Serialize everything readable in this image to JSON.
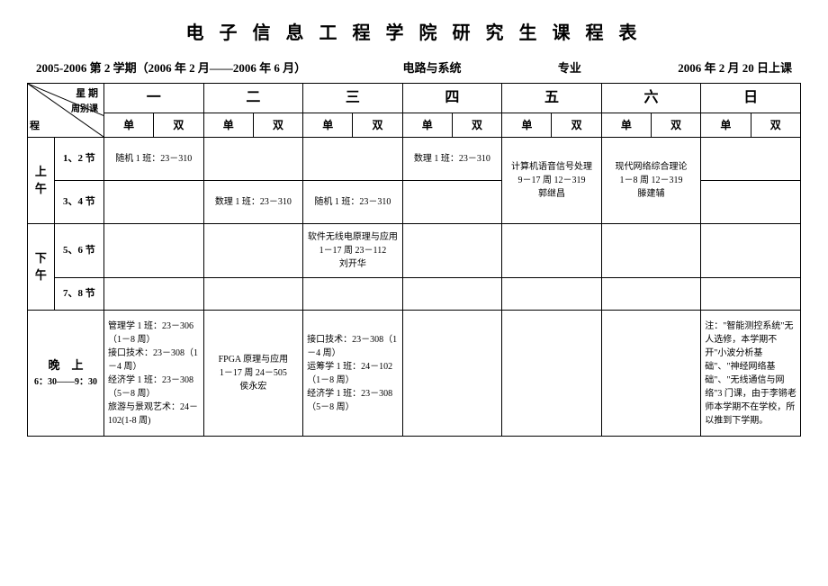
{
  "title": "电 子 信 息 工 程 学 院 研 究 生 课 程 表",
  "subtitle": {
    "term": "2005-2006 第 2 学期（2006 年 2 月——2006 年 6 月）",
    "major": "电路与系统",
    "major_label": "专业",
    "start": "2006 年 2 月 20 日上课"
  },
  "header": {
    "diag_top": "星 期",
    "diag_mid": "周别课",
    "diag_bot": "程",
    "days": [
      "一",
      "二",
      "三",
      "四",
      "五",
      "六",
      "日"
    ],
    "odd": "单",
    "even": "双"
  },
  "periods": {
    "morning": "上午",
    "afternoon": "下午",
    "evening_line1": "晚　上",
    "evening_line2": "6：30——9：30",
    "s12": "1、2 节",
    "s34": "3、4 节",
    "s56": "5、6 节",
    "s78": "7、8 节"
  },
  "cells": {
    "mon12": "随机 1 班：23－310",
    "wed12": "数理 1 班：23－310",
    "thu_all": "计算机语音信号处理\n9－17 周 12－319\n郭继昌",
    "sat_all": "现代网络综合理论\n1－8 周 12－319\n滕建辅",
    "tue34": "数理 1 班：23－310",
    "wed34": "随机 1 班：23－310",
    "wed56": "软件无线电原理与应用 1－17 周 23－112\n刘开华",
    "mon_eve": "管理学 1 班：23－306（1－8 周）\n接口技术：23－308（1－4 周）\n经济学 1 班：23－308（5－8 周）\n旅游与景观艺术：24－102(1-8 周)",
    "tue_eve": "FPGA 原理与应用\n1－17 周 24－505\n侯永宏",
    "wed_eve": "接口技术：23－308（1－4 周）\n运筹学 1 班：24－102（1－8 周）\n经济学 1 班：23－308（5－8 周）",
    "sun_eve": "注：\"智能测控系统\"无人选修，本学期不开\"小波分析基础\"、\"神经网络基础\"、\"无线通信与网络\"3 门课，由于李锵老师本学期不在学校，所以推到下学期。"
  }
}
